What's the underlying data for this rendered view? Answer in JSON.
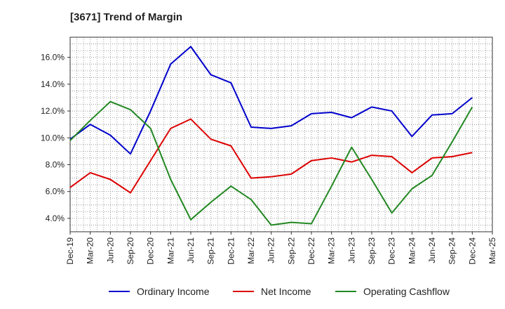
{
  "chart_data": {
    "type": "line",
    "title": "[3671]  Trend of Margin",
    "xlabel": "",
    "ylabel": "",
    "categories": [
      "Dec-19",
      "Mar-20",
      "Jun-20",
      "Sep-20",
      "Dec-20",
      "Mar-21",
      "Jun-21",
      "Sep-21",
      "Dec-21",
      "Mar-22",
      "Jun-22",
      "Sep-22",
      "Dec-22",
      "Mar-23",
      "Jun-23",
      "Sep-23",
      "Dec-23",
      "Mar-24",
      "Jun-24",
      "Sep-24",
      "Dec-24",
      "Mar-25"
    ],
    "ylim": [
      3.0,
      17.5
    ],
    "yticks": [
      4.0,
      6.0,
      8.0,
      10.0,
      12.0,
      14.0,
      16.0
    ],
    "ytick_labels": [
      "4.0%",
      "6.0%",
      "8.0%",
      "10.0%",
      "12.0%",
      "14.0%",
      "16.0%"
    ],
    "grid": true,
    "legend_position": "bottom",
    "series": [
      {
        "name": "Ordinary Income",
        "color": "#0000cc",
        "values": [
          9.9,
          11.0,
          10.2,
          8.8,
          12.0,
          15.5,
          16.8,
          14.7,
          14.1,
          10.8,
          10.7,
          10.9,
          11.8,
          11.9,
          11.5,
          12.3,
          12.0,
          10.1,
          11.7,
          11.8,
          13.0,
          null
        ]
      },
      {
        "name": "Net Income",
        "color": "#dd0000",
        "values": [
          6.3,
          7.4,
          6.9,
          5.9,
          8.3,
          10.7,
          11.4,
          9.9,
          9.4,
          7.0,
          7.1,
          7.3,
          8.3,
          8.5,
          8.2,
          8.7,
          8.6,
          7.4,
          8.5,
          8.6,
          8.9,
          null
        ]
      },
      {
        "name": "Operating Cashflow",
        "color": "#228822",
        "values": [
          9.8,
          11.3,
          12.7,
          12.1,
          10.7,
          6.9,
          3.9,
          5.2,
          6.4,
          5.4,
          3.5,
          3.7,
          3.6,
          6.4,
          9.3,
          6.9,
          4.4,
          6.2,
          7.2,
          9.7,
          12.3,
          null
        ]
      }
    ]
  }
}
